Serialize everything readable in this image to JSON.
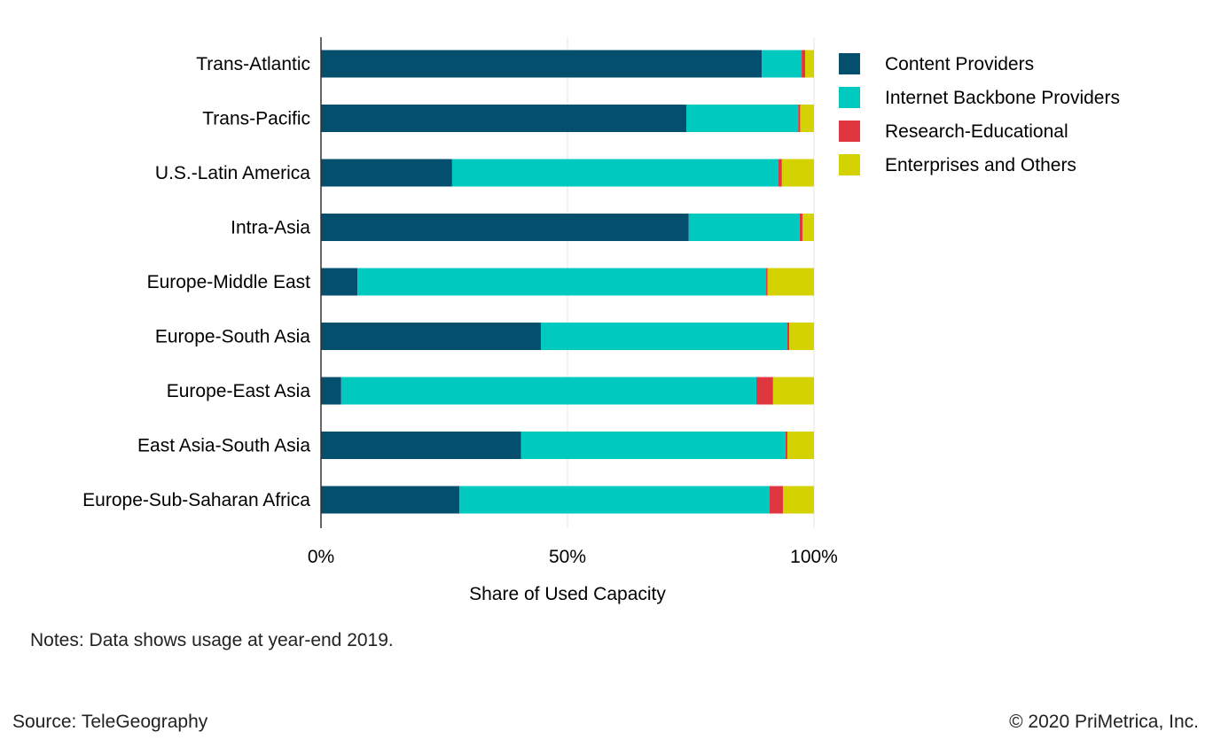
{
  "chart_data": {
    "type": "bar",
    "orientation": "horizontal",
    "stacked": true,
    "categories": [
      "Trans-Atlantic",
      "Trans-Pacific",
      "U.S.-Latin America",
      "Intra-Asia",
      "Europe-Middle East",
      "Europe-South Asia",
      "Europe-East Asia",
      "East Asia-South Asia",
      "Europe-Sub-Saharan Africa"
    ],
    "series": [
      {
        "name": "Content Providers",
        "color": "#054f6e",
        "values": [
          89.4,
          74.1,
          26.6,
          74.6,
          7.4,
          44.6,
          4.1,
          40.6,
          28.1
        ]
      },
      {
        "name": "Internet Backbone Providers",
        "color": "#00c9c0",
        "values": [
          8.1,
          22.7,
          66.2,
          22.5,
          82.9,
          50.0,
          84.2,
          53.6,
          62.9
        ]
      },
      {
        "name": "Research-Educational",
        "color": "#e0363f",
        "values": [
          0.7,
          0.4,
          0.7,
          0.6,
          0.3,
          0.4,
          3.4,
          0.4,
          2.7
        ]
      },
      {
        "name": "Enterprises and Others",
        "color": "#d4d200",
        "values": [
          1.8,
          2.8,
          6.5,
          2.3,
          9.4,
          5.0,
          8.3,
          5.4,
          6.3
        ]
      }
    ],
    "xlabel": "Share of Used Capacity",
    "xlim": [
      0,
      100
    ],
    "xticks": [
      "0%",
      "50%",
      "100%"
    ],
    "grid": true,
    "legend": "top-right"
  },
  "notes": "Notes: Data shows usage at year-end 2019.",
  "source": "Source: TeleGeography",
  "copyright": "© 2020 PriMetrica, Inc."
}
